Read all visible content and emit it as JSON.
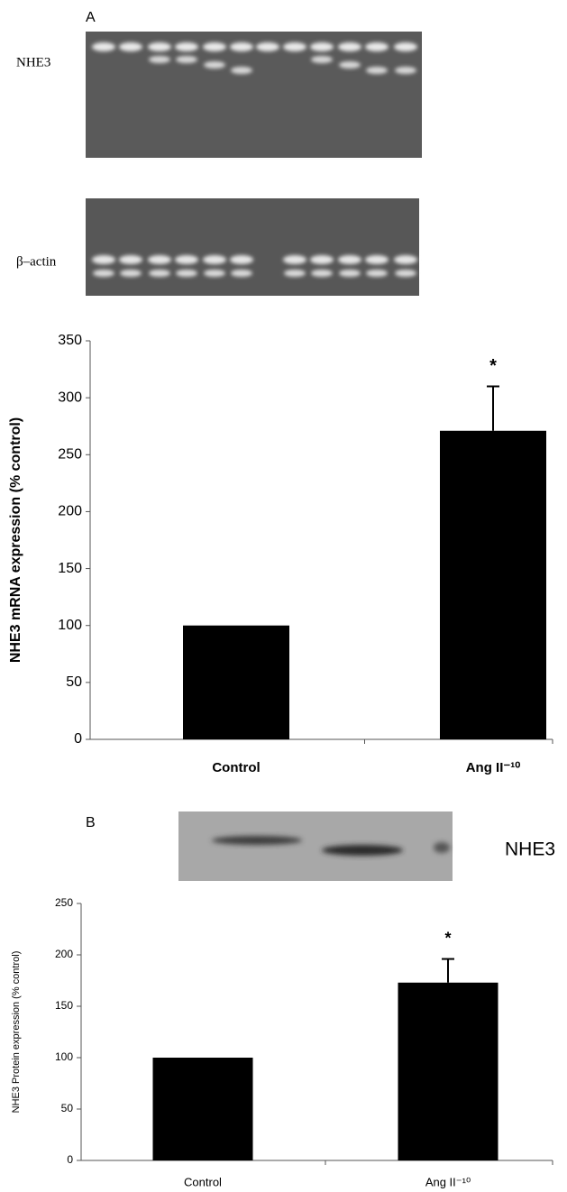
{
  "figure": {
    "panel_a": "A",
    "gel_a_labels": [
      "NHE3",
      "β–actin"
    ],
    "panel_b": "B",
    "gel_b_label": "NHE3"
  },
  "chart_data": [
    {
      "type": "bar",
      "y_label": "NHE3  mRNA expression (% control)",
      "categories": [
        "Control",
        "Ang II⁻¹⁰"
      ],
      "values": [
        100,
        271
      ],
      "errors": [
        null,
        39
      ],
      "annotations": [
        null,
        "*"
      ],
      "color": "#000000",
      "ylim": [
        0,
        350
      ],
      "yticks": [
        0,
        50,
        100,
        150,
        200,
        250,
        300,
        350
      ]
    },
    {
      "type": "bar",
      "y_label": "NHE3 Protein expression (% control)",
      "categories": [
        "Control",
        "Ang II⁻¹⁰"
      ],
      "values": [
        100,
        173
      ],
      "errors": [
        null,
        23
      ],
      "annotations": [
        null,
        "*"
      ],
      "color": "#000000",
      "ylim": [
        0,
        250
      ],
      "yticks": [
        0,
        50,
        100,
        150,
        200,
        250
      ]
    }
  ]
}
